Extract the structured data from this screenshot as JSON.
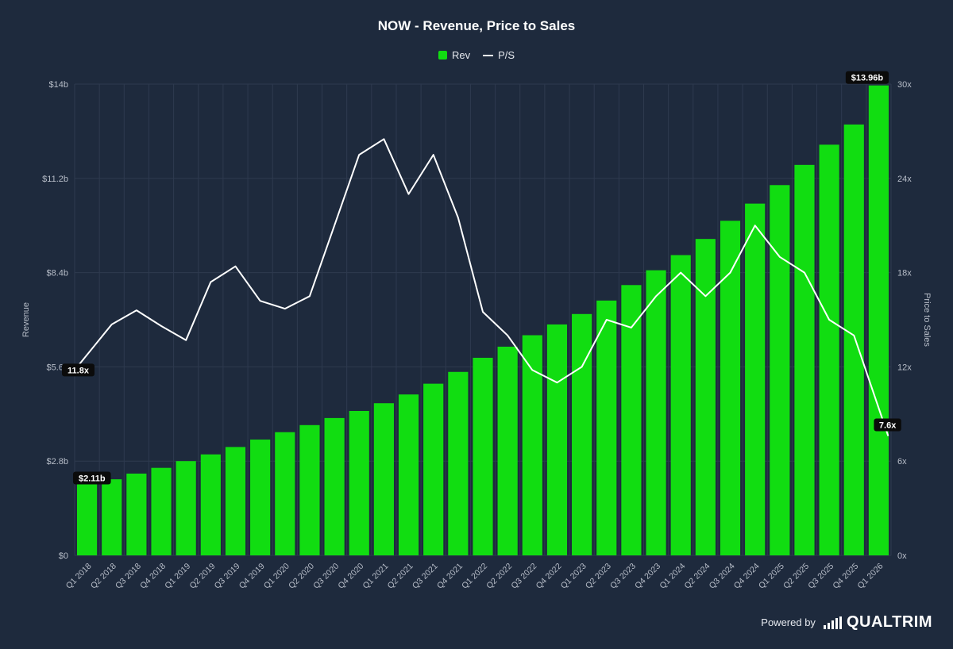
{
  "colors": {
    "background": "#1e2a3d",
    "revenue_bar": "#11dd11",
    "ps_line": "#ffffff",
    "grid": "#2e3a4f",
    "tick_text": "#b7bdc8",
    "label_bg": "#0b0b0b"
  },
  "chart_data": {
    "type": "bar",
    "title": "NOW - Revenue, Price to Sales",
    "legend": [
      "Rev",
      "P/S"
    ],
    "legend_position": "top",
    "grid": true,
    "xlabel": "",
    "ylabel": "Revenue",
    "y2label": "Price to Sales",
    "ylim": [
      0,
      14
    ],
    "y2lim": [
      0,
      30
    ],
    "y_ticks": [
      "$0",
      "$2.8b",
      "$5.6b",
      "$8.4b",
      "$11.2b",
      "$14b"
    ],
    "y2_ticks": [
      "0x",
      "6x",
      "12x",
      "18x",
      "24x",
      "30x"
    ],
    "categories": [
      "Q1 2018",
      "Q2 2018",
      "Q3 2018",
      "Q4 2018",
      "Q1 2019",
      "Q2 2019",
      "Q3 2019",
      "Q4 2019",
      "Q1 2020",
      "Q2 2020",
      "Q3 2020",
      "Q4 2020",
      "Q1 2021",
      "Q2 2021",
      "Q3 2021",
      "Q4 2021",
      "Q1 2022",
      "Q2 2022",
      "Q3 2022",
      "Q4 2022",
      "Q1 2023",
      "Q2 2023",
      "Q3 2023",
      "Q4 2023",
      "Q1 2024",
      "Q2 2024",
      "Q3 2024",
      "Q4 2024",
      "Q1 2025",
      "Q2 2025",
      "Q3 2025",
      "Q4 2025",
      "Q1 2026"
    ],
    "series": [
      {
        "name": "Rev",
        "type": "bar",
        "axis": "left",
        "unit": "billion USD",
        "values": [
          2.11,
          2.26,
          2.43,
          2.6,
          2.8,
          3.0,
          3.22,
          3.44,
          3.66,
          3.87,
          4.08,
          4.29,
          4.52,
          4.78,
          5.1,
          5.45,
          5.87,
          6.2,
          6.54,
          6.86,
          7.17,
          7.57,
          8.03,
          8.47,
          8.92,
          9.4,
          9.94,
          10.45,
          11.0,
          11.6,
          12.2,
          12.8,
          13.96
        ]
      },
      {
        "name": "P/S",
        "type": "line",
        "axis": "right",
        "unit": "x",
        "values": [
          11.8,
          14.7,
          15.6,
          14.6,
          13.7,
          17.4,
          18.4,
          16.2,
          15.7,
          16.5,
          21.0,
          25.5,
          26.5,
          23.0,
          25.5,
          21.5,
          15.5,
          14.0,
          11.8,
          11.0,
          12.0,
          15.0,
          14.5,
          16.5,
          18.0,
          16.5,
          18.0,
          21.0,
          19.0,
          18.0,
          15.0,
          14.0,
          7.6
        ]
      }
    ],
    "annotations": {
      "rev_first": "$2.11b",
      "rev_last": "$13.96b",
      "ps_first": "11.8x",
      "ps_last": "7.6x"
    }
  },
  "footer": {
    "powered_by": "Powered by",
    "brand": "QUALTRIM"
  }
}
